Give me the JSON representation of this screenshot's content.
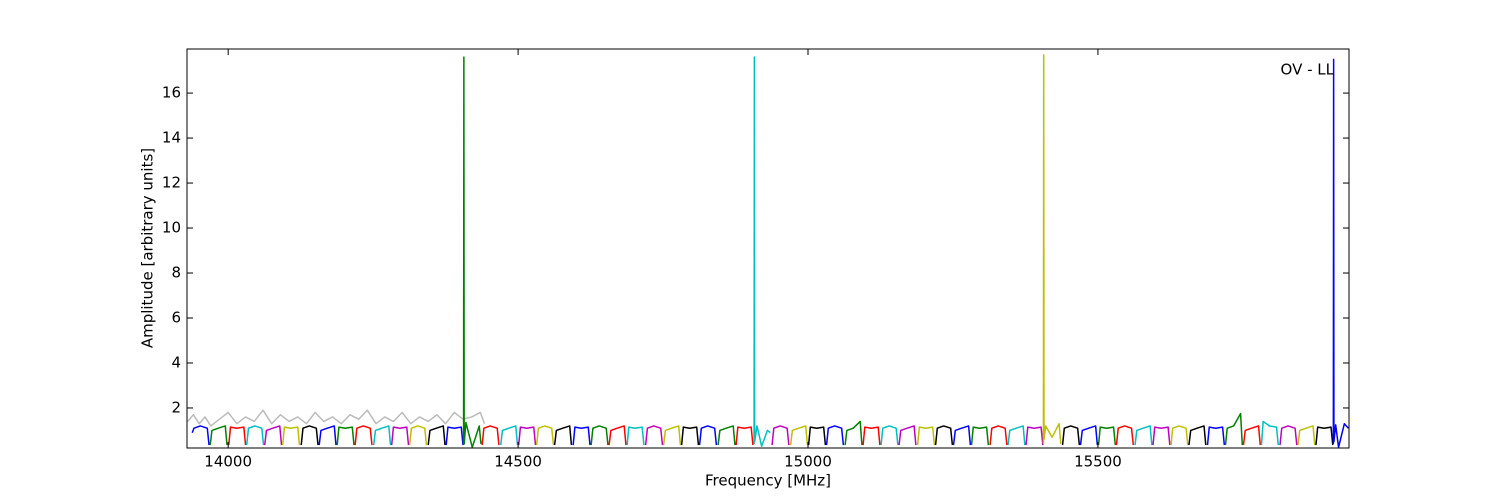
{
  "chart_data": {
    "type": "line",
    "annotation": "OV - LL",
    "xlabel": "Frequency [MHz]",
    "ylabel": "Amplitude [arbitrary units]",
    "xlim": [
      13929,
      15933
    ],
    "ylim": [
      0.22,
      17.96
    ],
    "xticks": [
      14000,
      14500,
      15000,
      15500
    ],
    "yticks": [
      2,
      4,
      6,
      8,
      10,
      12,
      14,
      16
    ],
    "grid": false,
    "series": [
      {
        "color": "#bbbbbb",
        "x": [
          13930,
          13940,
          13950,
          13960,
          13970,
          13985,
          14000,
          14015,
          14030,
          14045,
          14060,
          14075,
          14090,
          14105,
          14120,
          14135,
          14150,
          14165,
          14180,
          14195,
          14210,
          14225,
          14240,
          14255,
          14270,
          14285,
          14300,
          14315,
          14330,
          14345,
          14360,
          14375,
          14390,
          14405,
          14420,
          14435,
          14442
        ],
        "values": [
          1.4,
          1.7,
          1.3,
          1.6,
          1.2,
          1.5,
          1.8,
          1.3,
          1.6,
          1.4,
          1.9,
          1.3,
          1.7,
          1.4,
          1.6,
          1.3,
          1.8,
          1.4,
          1.6,
          1.3,
          1.7,
          1.5,
          1.9,
          1.3,
          1.6,
          1.4,
          1.8,
          1.3,
          1.6,
          1.4,
          1.7,
          1.3,
          1.8,
          1.5,
          1.6,
          1.8,
          1.3
        ]
      },
      {
        "color": "#0000ff",
        "x": [
          13938,
          13941,
          13952,
          13964,
          13967
        ],
        "values": [
          0.9,
          1.1,
          1.2,
          1.1,
          0.35
        ]
      },
      {
        "color": "#008000",
        "x": [
          13969,
          13972,
          13983,
          13995,
          13998
        ],
        "values": [
          0.35,
          1.0,
          1.1,
          1.2,
          0.35
        ]
      },
      {
        "color": "#ff0000",
        "x": [
          14001,
          14004,
          14015,
          14027,
          14030
        ],
        "values": [
          0.35,
          1.15,
          1.1,
          1.15,
          0.35
        ]
      },
      {
        "color": "#00bfbf",
        "x": [
          14032,
          14035,
          14046,
          14058,
          14061
        ],
        "values": [
          0.35,
          1.1,
          1.2,
          1.1,
          0.35
        ]
      },
      {
        "color": "#bf00bf",
        "x": [
          14063,
          14066,
          14077,
          14089,
          14092
        ],
        "values": [
          0.35,
          1.0,
          1.1,
          1.2,
          0.35
        ]
      },
      {
        "color": "#bfbf00",
        "x": [
          14094,
          14097,
          14108,
          14120,
          14123
        ],
        "values": [
          0.35,
          1.15,
          1.1,
          1.15,
          0.35
        ]
      },
      {
        "color": "#000000",
        "x": [
          14126,
          14129,
          14140,
          14152,
          14155
        ],
        "values": [
          0.35,
          1.1,
          1.2,
          1.1,
          0.35
        ]
      },
      {
        "color": "#0000ff",
        "x": [
          14157,
          14160,
          14171,
          14183,
          14186
        ],
        "values": [
          0.35,
          1.0,
          1.1,
          1.2,
          0.35
        ]
      },
      {
        "color": "#008000",
        "x": [
          14188,
          14191,
          14202,
          14214,
          14217
        ],
        "values": [
          0.35,
          1.15,
          1.1,
          1.15,
          0.35
        ]
      },
      {
        "color": "#ff0000",
        "x": [
          14219,
          14222,
          14233,
          14245,
          14248
        ],
        "values": [
          0.35,
          1.1,
          1.2,
          1.1,
          0.35
        ]
      },
      {
        "color": "#00bfbf",
        "x": [
          14251,
          14254,
          14265,
          14277,
          14280
        ],
        "values": [
          0.35,
          1.0,
          1.1,
          1.2,
          0.35
        ]
      },
      {
        "color": "#bf00bf",
        "x": [
          14282,
          14285,
          14296,
          14308,
          14311
        ],
        "values": [
          0.35,
          1.15,
          1.1,
          1.15,
          0.35
        ]
      },
      {
        "color": "#bfbf00",
        "x": [
          14313,
          14316,
          14327,
          14339,
          14342
        ],
        "values": [
          0.35,
          1.1,
          1.2,
          1.1,
          0.35
        ]
      },
      {
        "color": "#000000",
        "x": [
          14345,
          14348,
          14359,
          14371,
          14374
        ],
        "values": [
          0.35,
          1.0,
          1.1,
          1.2,
          0.35
        ]
      },
      {
        "color": "#0000ff",
        "x": [
          14376,
          14379,
          14390,
          14402,
          14405
        ],
        "values": [
          0.35,
          1.15,
          1.1,
          1.15,
          0.35
        ]
      },
      {
        "color": "#008000",
        "x": [
          14406,
          14406.5,
          14407,
          14410,
          14421,
          14433,
          14436
        ],
        "values": [
          0.4,
          17.6,
          0.4,
          1.35,
          0.25,
          1.2,
          0.4
        ]
      },
      {
        "color": "#ff0000",
        "x": [
          14438,
          14441,
          14452,
          14464,
          14467
        ],
        "values": [
          0.35,
          1.1,
          1.2,
          1.1,
          0.35
        ]
      },
      {
        "color": "#00bfbf",
        "x": [
          14470,
          14473,
          14484,
          14496,
          14499
        ],
        "values": [
          0.35,
          1.0,
          1.1,
          1.2,
          0.35
        ]
      },
      {
        "color": "#bf00bf",
        "x": [
          14501,
          14504,
          14515,
          14527,
          14530
        ],
        "values": [
          0.35,
          1.15,
          1.1,
          1.15,
          0.35
        ]
      },
      {
        "color": "#bfbf00",
        "x": [
          14532,
          14535,
          14546,
          14558,
          14561
        ],
        "values": [
          0.35,
          1.1,
          1.2,
          1.1,
          0.35
        ]
      },
      {
        "color": "#000000",
        "x": [
          14563,
          14566,
          14577,
          14589,
          14592
        ],
        "values": [
          0.35,
          1.0,
          1.1,
          1.2,
          0.35
        ]
      },
      {
        "color": "#0000ff",
        "x": [
          14595,
          14598,
          14609,
          14621,
          14624
        ],
        "values": [
          0.35,
          1.15,
          1.1,
          1.15,
          0.35
        ]
      },
      {
        "color": "#008000",
        "x": [
          14626,
          14629,
          14640,
          14652,
          14655
        ],
        "values": [
          0.35,
          1.1,
          1.2,
          1.1,
          0.35
        ]
      },
      {
        "color": "#ff0000",
        "x": [
          14657,
          14660,
          14671,
          14683,
          14686
        ],
        "values": [
          0.35,
          1.0,
          1.1,
          1.2,
          0.35
        ]
      },
      {
        "color": "#00bfbf",
        "x": [
          14688,
          14691,
          14702,
          14714,
          14717
        ],
        "values": [
          0.35,
          1.15,
          1.1,
          1.15,
          0.35
        ]
      },
      {
        "color": "#bf00bf",
        "x": [
          14720,
          14723,
          14734,
          14746,
          14749
        ],
        "values": [
          0.35,
          1.1,
          1.2,
          1.1,
          0.35
        ]
      },
      {
        "color": "#bfbf00",
        "x": [
          14751,
          14754,
          14765,
          14777,
          14780
        ],
        "values": [
          0.35,
          1.0,
          1.1,
          1.2,
          0.35
        ]
      },
      {
        "color": "#000000",
        "x": [
          14782,
          14785,
          14796,
          14808,
          14811
        ],
        "values": [
          0.35,
          1.15,
          1.1,
          1.15,
          0.35
        ]
      },
      {
        "color": "#0000ff",
        "x": [
          14813,
          14816,
          14827,
          14839,
          14842
        ],
        "values": [
          0.35,
          1.1,
          1.2,
          1.1,
          0.35
        ]
      },
      {
        "color": "#008000",
        "x": [
          14845,
          14848,
          14859,
          14871,
          14874
        ],
        "values": [
          0.35,
          1.0,
          1.1,
          1.2,
          0.35
        ]
      },
      {
        "color": "#ff0000",
        "x": [
          14876,
          14879,
          14890,
          14902,
          14905
        ],
        "values": [
          0.35,
          1.15,
          1.1,
          1.15,
          0.35
        ]
      },
      {
        "color": "#00bfbf",
        "x": [
          14907,
          14907.5,
          14908,
          14912,
          14920,
          14930,
          14935
        ],
        "values": [
          0.4,
          17.6,
          0.5,
          1.2,
          0.3,
          1.0,
          0.9
        ]
      },
      {
        "color": "#bf00bf",
        "x": [
          14938,
          14941,
          14952,
          14964,
          14967
        ],
        "values": [
          0.35,
          1.1,
          1.2,
          1.1,
          0.35
        ]
      },
      {
        "color": "#bfbf00",
        "x": [
          14970,
          14973,
          14984,
          14996,
          14999
        ],
        "values": [
          0.35,
          1.0,
          1.1,
          1.2,
          0.35
        ]
      },
      {
        "color": "#000000",
        "x": [
          15001,
          15004,
          15015,
          15027,
          15030
        ],
        "values": [
          0.35,
          1.15,
          1.1,
          1.15,
          0.35
        ]
      },
      {
        "color": "#0000ff",
        "x": [
          15032,
          15035,
          15046,
          15058,
          15061
        ],
        "values": [
          0.35,
          1.1,
          1.2,
          1.1,
          0.35
        ]
      },
      {
        "color": "#008000",
        "x": [
          15064,
          15067,
          15078,
          15090,
          15093
        ],
        "values": [
          0.35,
          1.0,
          1.1,
          1.4,
          0.35
        ]
      },
      {
        "color": "#ff0000",
        "x": [
          15095,
          15098,
          15109,
          15121,
          15124
        ],
        "values": [
          0.35,
          1.15,
          1.1,
          1.15,
          0.35
        ]
      },
      {
        "color": "#00bfbf",
        "x": [
          15126,
          15129,
          15140,
          15152,
          15155
        ],
        "values": [
          0.35,
          1.1,
          1.2,
          1.1,
          0.35
        ]
      },
      {
        "color": "#bf00bf",
        "x": [
          15157,
          15160,
          15171,
          15183,
          15186
        ],
        "values": [
          0.35,
          1.0,
          1.1,
          1.2,
          0.35
        ]
      },
      {
        "color": "#bfbf00",
        "x": [
          15189,
          15192,
          15203,
          15215,
          15218
        ],
        "values": [
          0.35,
          1.15,
          1.1,
          1.15,
          0.35
        ]
      },
      {
        "color": "#000000",
        "x": [
          15220,
          15223,
          15234,
          15246,
          15249
        ],
        "values": [
          0.35,
          1.1,
          1.2,
          1.1,
          0.35
        ]
      },
      {
        "color": "#0000ff",
        "x": [
          15251,
          15254,
          15265,
          15277,
          15280
        ],
        "values": [
          0.35,
          1.0,
          1.1,
          1.2,
          0.35
        ]
      },
      {
        "color": "#008000",
        "x": [
          15282,
          15285,
          15296,
          15308,
          15311
        ],
        "values": [
          0.35,
          1.15,
          1.1,
          1.15,
          0.35
        ]
      },
      {
        "color": "#ff0000",
        "x": [
          15314,
          15317,
          15328,
          15340,
          15343
        ],
        "values": [
          0.35,
          1.1,
          1.2,
          1.1,
          0.35
        ]
      },
      {
        "color": "#00bfbf",
        "x": [
          15345,
          15348,
          15359,
          15371,
          15374
        ],
        "values": [
          0.35,
          1.0,
          1.1,
          1.2,
          0.35
        ]
      },
      {
        "color": "#bf00bf",
        "x": [
          15376,
          15379,
          15390,
          15402,
          15405
        ],
        "values": [
          0.35,
          1.15,
          1.1,
          1.15,
          0.35
        ]
      },
      {
        "color": "#bfbf00",
        "x": [
          15406,
          15406.5,
          15407,
          15410,
          15421,
          15433,
          15436
        ],
        "values": [
          0.4,
          17.7,
          0.6,
          1.2,
          0.7,
          1.3,
          0.4
        ]
      },
      {
        "color": "#000000",
        "x": [
          15439,
          15442,
          15453,
          15465,
          15468
        ],
        "values": [
          0.35,
          1.1,
          1.2,
          1.1,
          0.35
        ]
      },
      {
        "color": "#0000ff",
        "x": [
          15470,
          15473,
          15484,
          15496,
          15499
        ],
        "values": [
          0.35,
          1.0,
          1.1,
          1.2,
          0.35
        ]
      },
      {
        "color": "#008000",
        "x": [
          15501,
          15504,
          15515,
          15527,
          15530
        ],
        "values": [
          0.35,
          1.15,
          1.1,
          1.15,
          0.35
        ]
      },
      {
        "color": "#ff0000",
        "x": [
          15532,
          15535,
          15546,
          15558,
          15561
        ],
        "values": [
          0.35,
          1.1,
          1.2,
          1.1,
          0.35
        ]
      },
      {
        "color": "#00bfbf",
        "x": [
          15564,
          15567,
          15578,
          15590,
          15593
        ],
        "values": [
          0.35,
          1.0,
          1.1,
          1.2,
          0.35
        ]
      },
      {
        "color": "#bf00bf",
        "x": [
          15595,
          15598,
          15609,
          15621,
          15624
        ],
        "values": [
          0.35,
          1.15,
          1.1,
          1.15,
          0.35
        ]
      },
      {
        "color": "#bfbf00",
        "x": [
          15626,
          15629,
          15640,
          15652,
          15655
        ],
        "values": [
          0.35,
          1.1,
          1.2,
          1.1,
          0.35
        ]
      },
      {
        "color": "#000000",
        "x": [
          15657,
          15660,
          15671,
          15683,
          15686
        ],
        "values": [
          0.35,
          1.0,
          1.1,
          1.2,
          0.35
        ]
      },
      {
        "color": "#0000ff",
        "x": [
          15689,
          15692,
          15703,
          15715,
          15718
        ],
        "values": [
          0.35,
          1.15,
          1.1,
          1.15,
          0.35
        ]
      },
      {
        "color": "#008000",
        "x": [
          15720,
          15723,
          15734,
          15746,
          15749
        ],
        "values": [
          0.35,
          1.1,
          1.2,
          1.75,
          0.35
        ]
      },
      {
        "color": "#ff0000",
        "x": [
          15751,
          15754,
          15765,
          15777,
          15780
        ],
        "values": [
          0.35,
          1.0,
          1.1,
          1.2,
          0.35
        ]
      },
      {
        "color": "#00bfbf",
        "x": [
          15782,
          15785,
          15796,
          15808,
          15811
        ],
        "values": [
          0.35,
          1.4,
          1.2,
          1.15,
          0.35
        ]
      },
      {
        "color": "#bf00bf",
        "x": [
          15814,
          15817,
          15828,
          15840,
          15843
        ],
        "values": [
          0.35,
          1.1,
          1.2,
          1.1,
          0.35
        ]
      },
      {
        "color": "#bfbf00",
        "x": [
          15845,
          15848,
          15859,
          15871,
          15874
        ],
        "values": [
          0.35,
          1.0,
          1.1,
          1.2,
          0.35
        ]
      },
      {
        "color": "#000000",
        "x": [
          15876,
          15879,
          15890,
          15902,
          15905
        ],
        "values": [
          0.35,
          1.15,
          1.1,
          1.15,
          0.35
        ]
      },
      {
        "color": "#0000ff",
        "x": [
          15906,
          15906.5,
          15907,
          15910,
          15915,
          15925,
          15932
        ],
        "values": [
          0.4,
          17.5,
          0.5,
          1.25,
          0.25,
          1.3,
          1.1
        ]
      }
    ]
  }
}
